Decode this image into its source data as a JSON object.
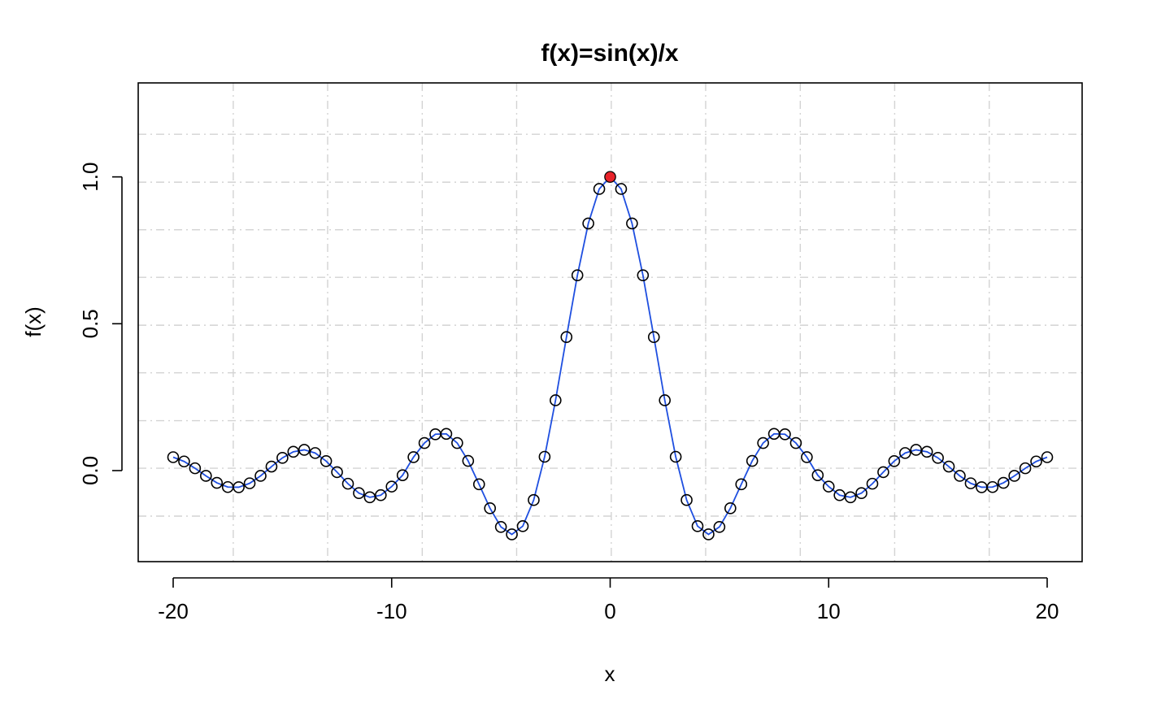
{
  "chart_data": {
    "type": "line",
    "title": "f(x)=sin(x)/x",
    "xlabel": "x",
    "ylabel": "f(x)",
    "xlim": [
      -21.6,
      21.6
    ],
    "ylim": [
      -0.31,
      1.32
    ],
    "x_ticks": [
      -20,
      -10,
      0,
      10,
      20
    ],
    "x_tick_labels": [
      "-20",
      "-10",
      "0",
      "10",
      "20"
    ],
    "y_ticks": [
      0.0,
      0.5,
      1.0
    ],
    "y_tick_labels": [
      "0.0",
      "0.5",
      "1.0"
    ],
    "grid": true,
    "grid_x": [
      -17.25,
      -12.93,
      -8.6,
      -4.28,
      0.05,
      4.37,
      8.7,
      13.02,
      17.35
    ],
    "grid_y": [
      -0.155,
      0.008,
      0.17,
      0.333,
      0.495,
      0.658,
      0.82,
      0.982,
      1.145
    ],
    "series": [
      {
        "kind": "line",
        "color": "#1f4fe0",
        "x": [
          -20,
          -19.5,
          -19,
          -18.5,
          -18,
          -17.5,
          -17,
          -16.5,
          -16,
          -15.5,
          -15,
          -14.5,
          -14,
          -13.5,
          -13,
          -12.5,
          -12,
          -11.5,
          -11,
          -10.5,
          -10,
          -9.5,
          -9,
          -8.5,
          -8,
          -7.5,
          -7,
          -6.5,
          -6,
          -5.5,
          -5,
          -4.5,
          -4,
          -3.5,
          -3,
          -2.5,
          -2,
          -1.5,
          -1,
          -0.5,
          0,
          0.5,
          1,
          1.5,
          2,
          2.5,
          3,
          3.5,
          4,
          4.5,
          5,
          5.5,
          6,
          6.5,
          7,
          7.5,
          8,
          8.5,
          9,
          9.5,
          10,
          10.5,
          11,
          11.5,
          12,
          12.5,
          13,
          13.5,
          14,
          14.5,
          15,
          15.5,
          16,
          16.5,
          17,
          17.5,
          18,
          18.5,
          19,
          19.5,
          20
        ],
        "y": [
          0.0456,
          0.0311,
          0.0079,
          -0.0179,
          -0.0417,
          -0.0561,
          -0.0566,
          -0.0433,
          -0.018,
          0.0137,
          0.0433,
          0.0641,
          0.0707,
          0.0598,
          0.0323,
          -0.0053,
          -0.0447,
          -0.0767,
          -0.0909,
          -0.0837,
          -0.0544,
          -0.0157,
          0.0458,
          0.0939,
          0.1237,
          0.1251,
          0.0939,
          0.033,
          -0.0466,
          -0.1283,
          -0.1918,
          -0.2172,
          -0.1892,
          -0.1002,
          0.047,
          0.2394,
          0.4546,
          0.665,
          0.8415,
          0.9589,
          1.0,
          0.9589,
          0.8415,
          0.665,
          0.4546,
          0.2394,
          0.047,
          -0.1002,
          -0.1892,
          -0.2172,
          -0.1918,
          -0.1283,
          -0.0466,
          0.033,
          0.0939,
          0.1251,
          0.1237,
          0.0939,
          0.0458,
          -0.0157,
          -0.0544,
          -0.0837,
          -0.0909,
          -0.0767,
          -0.0447,
          -0.0053,
          0.0323,
          0.0598,
          0.0707,
          0.0641,
          0.0433,
          0.0137,
          -0.018,
          -0.0433,
          -0.0566,
          -0.0561,
          -0.0417,
          -0.0179,
          0.0079,
          0.0311,
          0.0456
        ]
      },
      {
        "kind": "points",
        "color": "#000000",
        "x": [
          -20,
          -19.5,
          -19,
          -18.5,
          -18,
          -17.5,
          -17,
          -16.5,
          -16,
          -15.5,
          -15,
          -14.5,
          -14,
          -13.5,
          -13,
          -12.5,
          -12,
          -11.5,
          -11,
          -10.5,
          -10,
          -9.5,
          -9,
          -8.5,
          -8,
          -7.5,
          -7,
          -6.5,
          -6,
          -5.5,
          -5,
          -4.5,
          -4,
          -3.5,
          -3,
          -2.5,
          -2,
          -1.5,
          -1,
          -0.5,
          0,
          0.5,
          1,
          1.5,
          2,
          2.5,
          3,
          3.5,
          4,
          4.5,
          5,
          5.5,
          6,
          6.5,
          7,
          7.5,
          8,
          8.5,
          9,
          9.5,
          10,
          10.5,
          11,
          11.5,
          12,
          12.5,
          13,
          13.5,
          14,
          14.5,
          15,
          15.5,
          16,
          16.5,
          17,
          17.5,
          18,
          18.5,
          19,
          19.5,
          20
        ],
        "y": [
          0.0456,
          0.0311,
          0.0079,
          -0.0179,
          -0.0417,
          -0.0561,
          -0.0566,
          -0.0433,
          -0.018,
          0.0137,
          0.0433,
          0.0641,
          0.0707,
          0.0598,
          0.0323,
          -0.0053,
          -0.0447,
          -0.0767,
          -0.0909,
          -0.0837,
          -0.0544,
          -0.0157,
          0.0458,
          0.0939,
          0.1237,
          0.1251,
          0.0939,
          0.033,
          -0.0466,
          -0.1283,
          -0.1918,
          -0.2172,
          -0.1892,
          -0.1002,
          0.047,
          0.2394,
          0.4546,
          0.665,
          0.8415,
          0.9589,
          1.0,
          0.9589,
          0.8415,
          0.665,
          0.4546,
          0.2394,
          0.047,
          -0.1002,
          -0.1892,
          -0.2172,
          -0.1918,
          -0.1283,
          -0.0466,
          0.033,
          0.0939,
          0.1251,
          0.1237,
          0.0939,
          0.0458,
          -0.0157,
          -0.0544,
          -0.0837,
          -0.0909,
          -0.0767,
          -0.0447,
          -0.0053,
          0.0323,
          0.0598,
          0.0707,
          0.0641,
          0.0433,
          0.0137,
          -0.018,
          -0.0433,
          -0.0566,
          -0.0561,
          -0.0417,
          -0.0179,
          0.0079,
          0.0311,
          0.0456
        ]
      },
      {
        "kind": "highlight-point",
        "color": "#e8232a",
        "x": [
          0
        ],
        "y": [
          1.0
        ]
      }
    ]
  }
}
